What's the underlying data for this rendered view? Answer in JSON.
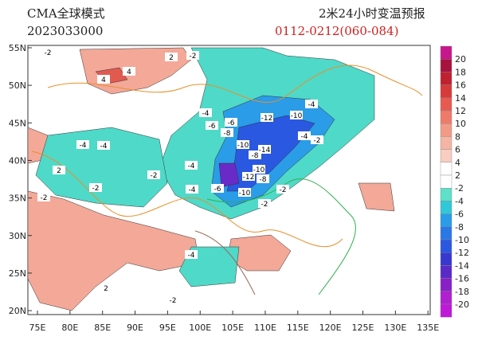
{
  "header": {
    "model": "CMA全球模式",
    "init_time": "2023033000",
    "product": "2米24小时变温预报",
    "valid": "0112-0212(060-084)"
  },
  "lat_labels": [
    "55N",
    "50N",
    "45N",
    "40N",
    "35N",
    "30N",
    "25N",
    "20N"
  ],
  "lon_labels": [
    "75E",
    "80E",
    "85E",
    "90E",
    "95E",
    "100E",
    "105E",
    "110E",
    "115E",
    "120E",
    "125E",
    "130E",
    "135E"
  ],
  "colorbar": {
    "labels": [
      20,
      18,
      16,
      14,
      12,
      10,
      8,
      6,
      4,
      2,
      -2,
      -4,
      -6,
      -8,
      -10,
      -12,
      -14,
      -16,
      -18,
      -20
    ],
    "colors": [
      "#c8178c",
      "#a8123e",
      "#c02030",
      "#d83a3a",
      "#e85a50",
      "#f07a6a",
      "#f29a88",
      "#f5b4a4",
      "#f8cdc2",
      "#ffffff",
      "#ffffff",
      "#5fe0c8",
      "#30c8d8",
      "#2a9ce8",
      "#2a78e8",
      "#2a58e0",
      "#3838d0",
      "#5a2ac8",
      "#8a20c8",
      "#b020d0",
      "#c018d8"
    ]
  },
  "contour_labels": [
    -2,
    4,
    2,
    -2,
    4,
    -4,
    -2,
    -4,
    -6,
    -8,
    -10,
    -12,
    -10,
    -6,
    -4,
    -8,
    -10,
    -14,
    -4,
    -2,
    -12,
    -10,
    -8,
    -4,
    -2,
    -4,
    -2,
    -6,
    -2,
    2,
    -2,
    -4,
    2,
    -2,
    -4
  ]
}
